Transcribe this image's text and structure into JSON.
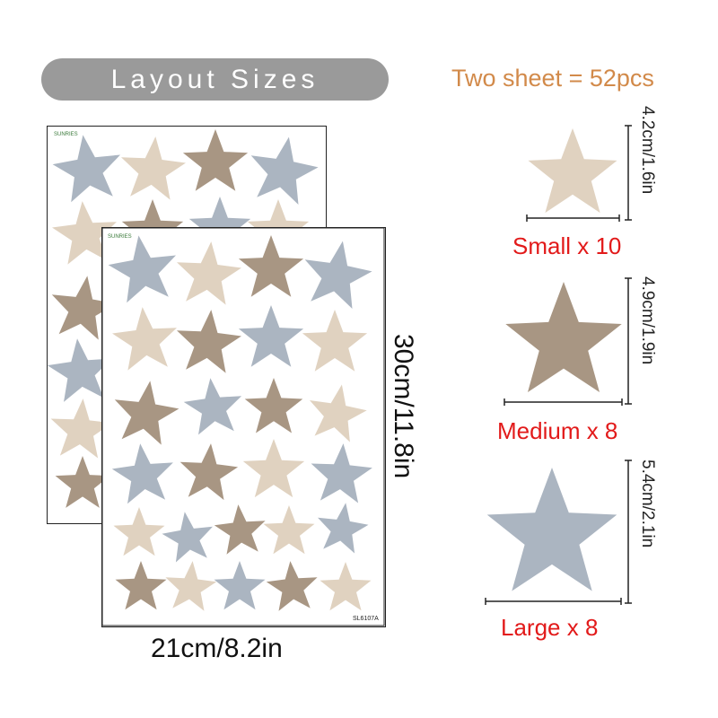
{
  "header": {
    "title": "Layout Sizes",
    "total": "Two sheet = 52pcs"
  },
  "sheet": {
    "brand": "SUNRIES",
    "code": "SL6107A",
    "width_label": "21cm/8.2in",
    "height_label": "30cm/11.8in"
  },
  "sizes": [
    {
      "label": "Small x 10",
      "dimension": "4.2cm/1.6in",
      "color": "#e0d2c0"
    },
    {
      "label": "Medium x 8",
      "dimension": "4.9cm/1.9in",
      "color": "#a89683"
    },
    {
      "label": "Large x 8",
      "dimension": "5.4cm/2.1in",
      "color": "#abb5c1"
    }
  ],
  "colors": {
    "blue": "#abb5c1",
    "beige": "#e0d2c0",
    "brown": "#a89683",
    "title_accent": "#d28a4a",
    "label_red": "#e21a1a"
  }
}
